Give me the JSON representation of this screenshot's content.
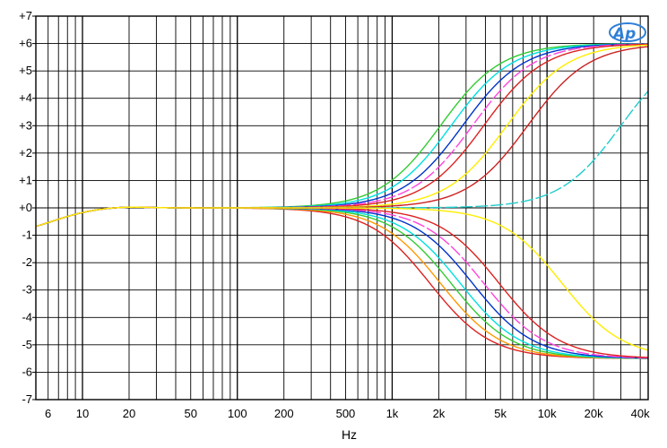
{
  "chart_data": {
    "type": "line",
    "xlabel": "Hz",
    "ylabel": "",
    "x_scale": "log",
    "xlim": [
      5,
      45000
    ],
    "ylim": [
      -7,
      7
    ],
    "grid": true,
    "logo": "Ap",
    "x_ticks": [
      {
        "value": 6,
        "label": "6"
      },
      {
        "value": 10,
        "label": "10"
      },
      {
        "value": 20,
        "label": "20"
      },
      {
        "value": 50,
        "label": "50"
      },
      {
        "value": 100,
        "label": "100"
      },
      {
        "value": 200,
        "label": "200"
      },
      {
        "value": 500,
        "label": "500"
      },
      {
        "value": 1000,
        "label": "1k"
      },
      {
        "value": 2000,
        "label": "2k"
      },
      {
        "value": 5000,
        "label": "5k"
      },
      {
        "value": 10000,
        "label": "10k"
      },
      {
        "value": 20000,
        "label": "20k"
      },
      {
        "value": 40000,
        "label": "40k"
      }
    ],
    "y_ticks": [
      {
        "value": 7,
        "label": "+7"
      },
      {
        "value": 6,
        "label": "+6"
      },
      {
        "value": 5,
        "label": "+5"
      },
      {
        "value": 4,
        "label": "+4"
      },
      {
        "value": 3,
        "label": "+3"
      },
      {
        "value": 2,
        "label": "+2"
      },
      {
        "value": 1,
        "label": "+1"
      },
      {
        "value": 0,
        "label": "+0"
      },
      {
        "value": -1,
        "label": "-1"
      },
      {
        "value": -2,
        "label": "-2"
      },
      {
        "value": -3,
        "label": "-3"
      },
      {
        "value": -4,
        "label": "-4"
      },
      {
        "value": -5,
        "label": "-5"
      },
      {
        "value": -6,
        "label": "-6"
      },
      {
        "value": -7,
        "label": "-7"
      }
    ],
    "series": [
      {
        "color": "#33cc33",
        "dash": false,
        "shelf": 6,
        "f50": 2050,
        "k": 1.3
      },
      {
        "color": "#00e0e0",
        "dash": false,
        "shelf": 6,
        "f50": 2400,
        "k": 1.3
      },
      {
        "color": "#0033cc",
        "dash": false,
        "shelf": 6,
        "f50": 2850,
        "k": 1.3
      },
      {
        "color": "#ff44dd",
        "dash": true,
        "shelf": 6,
        "f50": 3300,
        "k": 1.3
      },
      {
        "color": "#dd2222",
        "dash": false,
        "shelf": 6,
        "f50": 3900,
        "k": 1.3
      },
      {
        "color": "#ffee00",
        "dash": false,
        "shelf": 6,
        "f50": 5500,
        "k": 1.3
      },
      {
        "color": "#cc2222",
        "dash": false,
        "shelf": 6,
        "f50": 7500,
        "k": 1.3
      },
      {
        "color": "#22cccc",
        "dash": true,
        "shelf": 6,
        "f50": 30000,
        "k": 1.3
      },
      {
        "color": "#dd2222",
        "dash": false,
        "shelf": -5.5,
        "f50": 1750,
        "k": 1.3
      },
      {
        "color": "#ff9900",
        "dash": false,
        "shelf": -5.5,
        "f50": 2050,
        "k": 1.3
      },
      {
        "color": "#33cc33",
        "dash": false,
        "shelf": -5.5,
        "f50": 2400,
        "k": 1.3
      },
      {
        "color": "#00e0e0",
        "dash": false,
        "shelf": -5.5,
        "f50": 2750,
        "k": 1.3
      },
      {
        "color": "#0033cc",
        "dash": false,
        "shelf": -5.5,
        "f50": 3300,
        "k": 1.3
      },
      {
        "color": "#ff44dd",
        "dash": true,
        "shelf": -5.5,
        "f50": 3900,
        "k": 1.3
      },
      {
        "color": "#dd2222",
        "dash": false,
        "shelf": -5.5,
        "f50": 4900,
        "k": 1.3
      },
      {
        "color": "#ffee00",
        "dash": false,
        "shelf": -5.5,
        "f50": 12500,
        "k": 1.3
      }
    ]
  }
}
